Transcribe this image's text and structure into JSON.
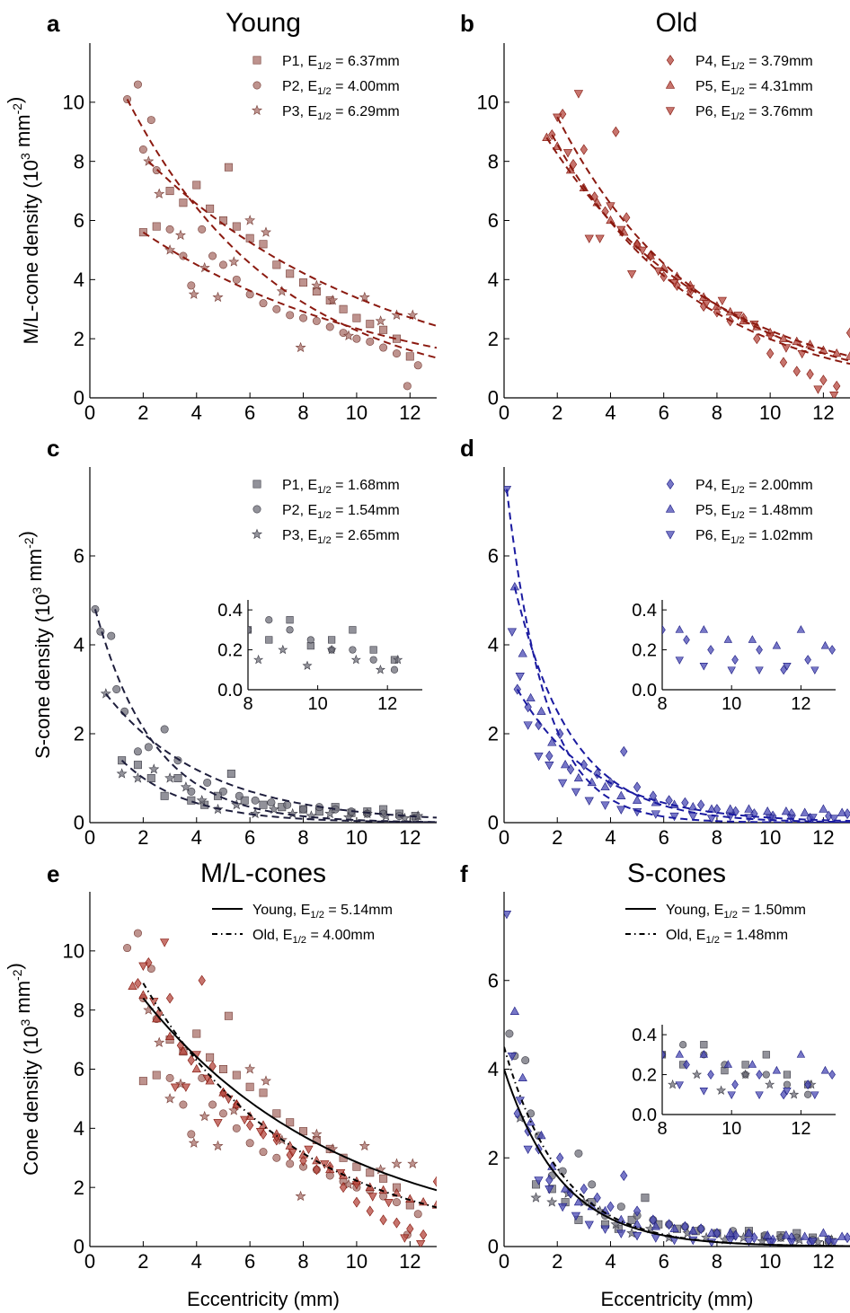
{
  "figure": {
    "colors": {
      "young_ml": "#a86f68",
      "old_ml": "#b4463c",
      "young_s": "#6e6e78",
      "old_s": "#4a4ab4",
      "ml_fit": "#8b1a10",
      "young_s_fit": "#1e1e3c",
      "old_s_fit": "#1a1aa0"
    }
  },
  "chart_data": [
    {
      "panel": "a",
      "type": "scatter",
      "title": "Young",
      "ylabel": "M/L-cone density (10^3 mm^-2)",
      "xlabel": "",
      "xlim": [
        0,
        13
      ],
      "ylim": [
        0,
        12
      ],
      "xticks": [
        "0",
        "2",
        "4",
        "6",
        "8",
        "10",
        "12"
      ],
      "yticks": [
        "0",
        "2",
        "4",
        "6",
        "8",
        "10"
      ],
      "legend_position": "top-right",
      "series": [
        {
          "name": "P1, E1/2 = 6.37mm",
          "marker": "square",
          "e_half": 6.37,
          "x": [
            2.0,
            2.5,
            3.0,
            3.5,
            4.0,
            4.5,
            5.0,
            5.2,
            5.5,
            6.0,
            6.5,
            7.0,
            7.5,
            8.0,
            8.5,
            9.0,
            9.5,
            10.0,
            10.5,
            11.0,
            11.5,
            12.0
          ],
          "y": [
            5.6,
            5.8,
            7.0,
            6.6,
            7.2,
            6.4,
            6.0,
            7.8,
            5.8,
            5.4,
            5.2,
            4.5,
            4.2,
            3.9,
            3.6,
            3.3,
            3.0,
            2.7,
            2.5,
            2.3,
            2.0,
            1.4
          ]
        },
        {
          "name": "P2, E1/2 = 4.00mm",
          "marker": "circle",
          "e_half": 4.0,
          "x": [
            1.4,
            1.8,
            2.0,
            2.3,
            2.5,
            3.0,
            3.5,
            3.8,
            4.2,
            4.6,
            5.0,
            5.5,
            6.0,
            6.5,
            7.0,
            7.5,
            8.0,
            8.5,
            9.0,
            9.5,
            10.0,
            10.5,
            11.0,
            11.5,
            11.9,
            12.3
          ],
          "y": [
            10.1,
            10.6,
            8.4,
            9.4,
            7.7,
            5.7,
            4.8,
            3.8,
            5.7,
            4.8,
            4.5,
            4.0,
            3.5,
            3.2,
            3.0,
            2.8,
            2.7,
            2.6,
            2.4,
            2.2,
            2.0,
            1.9,
            1.7,
            1.5,
            0.4,
            1.1
          ]
        },
        {
          "name": "P3, E1/2 = 6.29mm",
          "marker": "star",
          "e_half": 6.29,
          "x": [
            2.2,
            2.6,
            3.0,
            3.4,
            3.9,
            4.3,
            4.8,
            5.4,
            6.0,
            6.6,
            7.2,
            7.9,
            8.5,
            9.1,
            9.7,
            10.3,
            10.9,
            11.5,
            12.1
          ],
          "y": [
            8.0,
            6.9,
            5.0,
            5.5,
            3.5,
            4.4,
            3.4,
            4.6,
            6.0,
            5.6,
            3.6,
            1.7,
            3.8,
            3.3,
            2.1,
            3.4,
            2.6,
            2.8,
            2.8
          ]
        }
      ]
    },
    {
      "panel": "b",
      "type": "scatter",
      "title": "Old",
      "ylabel": "",
      "xlabel": "",
      "xlim": [
        0,
        13
      ],
      "ylim": [
        0,
        12
      ],
      "xticks": [
        "0",
        "2",
        "4",
        "6",
        "8",
        "10",
        "12"
      ],
      "yticks": [
        "0",
        "2",
        "4",
        "6",
        "8",
        "10"
      ],
      "legend_position": "top-right",
      "series": [
        {
          "name": "P4, E1/2 = 3.79mm",
          "marker": "diamond",
          "e_half": 3.79,
          "x": [
            1.8,
            2.2,
            2.6,
            3.0,
            3.4,
            3.8,
            4.2,
            4.6,
            5.0,
            5.5,
            6.0,
            6.5,
            7.0,
            7.5,
            8.0,
            8.5,
            9.0,
            9.5,
            10.0,
            10.5,
            11.0,
            11.5,
            12.0,
            12.5,
            13.0
          ],
          "y": [
            8.9,
            9.6,
            7.9,
            8.4,
            6.8,
            6.3,
            9.0,
            6.1,
            5.2,
            4.8,
            4.1,
            3.8,
            3.6,
            3.1,
            2.9,
            2.6,
            2.7,
            2.0,
            1.5,
            1.2,
            0.9,
            0.8,
            0.6,
            0.4,
            2.2
          ]
        },
        {
          "name": "P5, E1/2 = 4.31mm",
          "marker": "triangle-up",
          "e_half": 4.31,
          "x": [
            1.6,
            2.0,
            2.5,
            3.0,
            3.5,
            4.0,
            4.5,
            5.0,
            5.5,
            6.0,
            6.5,
            7.0,
            7.5,
            8.0,
            8.5,
            9.0,
            9.5,
            10.0,
            10.5,
            11.0,
            11.5,
            12.0,
            12.5,
            13.0
          ],
          "y": [
            8.8,
            8.5,
            7.7,
            7.1,
            6.6,
            6.0,
            5.6,
            5.2,
            4.8,
            4.4,
            4.1,
            3.8,
            3.4,
            3.1,
            2.9,
            2.6,
            2.4,
            2.2,
            2.0,
            1.9,
            1.8,
            1.6,
            1.5,
            1.4
          ]
        },
        {
          "name": "P6, E1/2 = 3.76mm",
          "marker": "triangle-down",
          "e_half": 3.76,
          "x": [
            2.0,
            2.4,
            2.8,
            3.2,
            3.6,
            4.0,
            4.4,
            4.8,
            5.2,
            5.8,
            6.4,
            7.0,
            7.6,
            8.2,
            8.8,
            9.4,
            10.0,
            10.6,
            11.2,
            11.8,
            12.4
          ],
          "y": [
            9.5,
            8.3,
            10.3,
            5.4,
            5.4,
            6.5,
            5.7,
            4.2,
            5.0,
            4.3,
            3.9,
            3.7,
            3.2,
            3.3,
            2.8,
            2.5,
            2.1,
            1.7,
            1.5,
            0.3,
            0.1
          ]
        }
      ]
    },
    {
      "panel": "c",
      "type": "scatter",
      "title": "",
      "ylabel": "S-cone density (10^3 mm^-2)",
      "xlabel": "",
      "xlim": [
        0,
        13
      ],
      "ylim": [
        0,
        8
      ],
      "xticks": [
        "0",
        "2",
        "4",
        "6",
        "8",
        "10",
        "12"
      ],
      "yticks": [
        "0",
        "2",
        "4",
        "6"
      ],
      "legend_position": "top-right",
      "inset": {
        "xlim": [
          8,
          13
        ],
        "ylim": [
          0,
          0.45
        ],
        "xticks": [
          "8",
          "10",
          "12"
        ],
        "yticks": [
          "0.0",
          "0.2",
          "0.4"
        ]
      },
      "series": [
        {
          "name": "P1, E1/2 = 1.68mm",
          "marker": "square",
          "e_half": 1.68,
          "x": [
            1.2,
            1.8,
            2.3,
            2.8,
            3.3,
            3.8,
            4.3,
            4.8,
            5.3,
            5.8,
            6.5,
            7.2,
            8.0,
            8.6,
            9.2,
            9.8,
            10.4,
            11.0,
            11.6,
            12.2
          ],
          "y": [
            1.4,
            1.3,
            1.0,
            0.6,
            1.0,
            0.5,
            0.4,
            0.6,
            1.1,
            0.5,
            0.4,
            0.35,
            0.3,
            0.25,
            0.35,
            0.22,
            0.25,
            0.3,
            0.2,
            0.15
          ]
        },
        {
          "name": "P2, E1/2 = 1.54mm",
          "marker": "circle",
          "e_half": 1.54,
          "x": [
            0.2,
            0.4,
            0.8,
            1.0,
            1.3,
            1.8,
            2.2,
            2.8,
            3.3,
            3.8,
            4.4,
            5.0,
            5.6,
            6.2,
            6.8,
            7.4,
            8.0,
            8.6,
            9.2,
            9.8,
            10.4,
            11.0,
            11.6,
            12.2
          ],
          "y": [
            4.8,
            4.3,
            4.2,
            3.0,
            2.5,
            1.6,
            1.7,
            2.1,
            1.4,
            0.7,
            0.9,
            0.7,
            0.6,
            0.5,
            0.45,
            0.4,
            0.3,
            0.35,
            0.3,
            0.25,
            0.2,
            0.2,
            0.15,
            0.1
          ]
        },
        {
          "name": "P3, E1/2 = 2.65mm",
          "marker": "star",
          "e_half": 2.65,
          "x": [
            0.6,
            1.2,
            1.8,
            2.4,
            3.0,
            3.6,
            4.2,
            4.8,
            5.5,
            6.2,
            6.9,
            7.6,
            8.3,
            9.0,
            9.7,
            10.4,
            11.1,
            11.8,
            12.3
          ],
          "y": [
            2.9,
            1.1,
            1.0,
            1.2,
            1.0,
            0.8,
            0.5,
            0.3,
            0.4,
            0.2,
            0.3,
            0.2,
            0.15,
            0.2,
            0.12,
            0.2,
            0.15,
            0.1,
            0.15
          ]
        }
      ]
    },
    {
      "panel": "d",
      "type": "scatter",
      "title": "",
      "ylabel": "",
      "xlabel": "",
      "xlim": [
        0,
        13
      ],
      "ylim": [
        0,
        8
      ],
      "xticks": [
        "0",
        "2",
        "4",
        "6",
        "8",
        "10",
        "12"
      ],
      "yticks": [
        "0",
        "2",
        "4",
        "6"
      ],
      "legend_position": "top-right",
      "inset": {
        "xlim": [
          8,
          13
        ],
        "ylim": [
          0,
          0.45
        ],
        "xticks": [
          "8",
          "10",
          "12"
        ],
        "yticks": [
          "0.0",
          "0.2",
          "0.4"
        ]
      },
      "series": [
        {
          "name": "P4, E1/2 = 2.00mm",
          "marker": "diamond",
          "e_half": 2.0,
          "x": [
            0.5,
            0.9,
            1.3,
            1.7,
            2.1,
            2.5,
            3.0,
            3.5,
            4.0,
            4.5,
            5.0,
            5.6,
            6.2,
            6.8,
            7.4,
            8.0,
            8.7,
            9.4,
            10.1,
            10.8,
            11.5,
            12.2,
            12.9
          ],
          "y": [
            3.0,
            2.6,
            2.2,
            1.5,
            2.0,
            1.2,
            1.3,
            1.1,
            0.9,
            1.6,
            0.8,
            0.6,
            0.5,
            0.45,
            0.4,
            0.3,
            0.25,
            0.2,
            0.15,
            0.2,
            0.1,
            0.15,
            0.2
          ]
        },
        {
          "name": "P5, E1/2 = 1.48mm",
          "marker": "triangle-up",
          "e_half": 1.48,
          "x": [
            0.4,
            0.7,
            1.0,
            1.4,
            1.8,
            2.3,
            2.8,
            3.3,
            3.8,
            4.4,
            5.0,
            5.7,
            6.4,
            7.1,
            7.8,
            8.5,
            9.2,
            9.9,
            10.6,
            11.3,
            12.0,
            12.7
          ],
          "y": [
            5.3,
            3.8,
            2.8,
            2.5,
            1.8,
            1.3,
            1.0,
            0.9,
            0.8,
            0.6,
            0.5,
            0.45,
            0.4,
            0.35,
            0.3,
            0.3,
            0.3,
            0.25,
            0.25,
            0.22,
            0.3,
            0.22
          ]
        },
        {
          "name": "P6, E1/2 = 1.02mm",
          "marker": "triangle-down",
          "e_half": 1.02,
          "x": [
            0.1,
            0.3,
            0.6,
            0.9,
            1.3,
            1.7,
            2.2,
            2.7,
            3.2,
            3.8,
            4.4,
            5.0,
            5.7,
            6.4,
            7.1,
            7.8,
            8.5,
            9.2,
            10.0,
            10.8,
            11.6,
            12.4
          ],
          "y": [
            7.5,
            4.3,
            3.3,
            2.2,
            1.5,
            1.3,
            0.9,
            0.7,
            0.5,
            0.4,
            0.3,
            0.25,
            0.2,
            0.15,
            0.15,
            0.1,
            0.15,
            0.12,
            0.1,
            0.1,
            0.12,
            0.1
          ]
        }
      ]
    },
    {
      "panel": "e",
      "type": "scatter",
      "title": "M/L-cones",
      "ylabel": "Cone density (10^3 mm^-2)",
      "xlabel": "Eccentricity (mm)",
      "xlim": [
        0,
        13
      ],
      "ylim": [
        0,
        12
      ],
      "xticks": [
        "0",
        "2",
        "4",
        "6",
        "8",
        "10",
        "12"
      ],
      "yticks": [
        "0",
        "2",
        "4",
        "6",
        "8",
        "10"
      ],
      "legend_position": "top-right",
      "legend": [
        {
          "name": "Young, E1/2 = 5.14mm",
          "style": "solid",
          "e_half": 5.14,
          "a": 11.0
        },
        {
          "name": "Old, E1/2 = 4.00mm",
          "style": "dash-dot",
          "e_half": 4.0,
          "a": 12.6
        }
      ],
      "combines_panels": [
        "a",
        "b"
      ]
    },
    {
      "panel": "f",
      "type": "scatter",
      "title": "S-cones",
      "ylabel": "",
      "xlabel": "Eccentricity (mm)",
      "xlim": [
        0,
        13
      ],
      "ylim": [
        0,
        8
      ],
      "xticks": [
        "0",
        "2",
        "4",
        "6",
        "8",
        "10",
        "12"
      ],
      "yticks": [
        "0",
        "2",
        "4",
        "6"
      ],
      "legend_position": "top-right",
      "inset": {
        "xlim": [
          8,
          13
        ],
        "ylim": [
          0,
          0.45
        ],
        "xticks": [
          "8",
          "10",
          "12"
        ],
        "yticks": [
          "0.0",
          "0.2",
          "0.4"
        ]
      },
      "legend": [
        {
          "name": "Young, E1/2 = 1.50mm",
          "style": "solid",
          "e_half": 1.5,
          "a": 4.0
        },
        {
          "name": "Old, E1/2 = 1.48mm",
          "style": "dash-dot",
          "e_half": 1.48,
          "a": 4.5
        }
      ],
      "combines_panels": [
        "c",
        "d"
      ]
    }
  ]
}
